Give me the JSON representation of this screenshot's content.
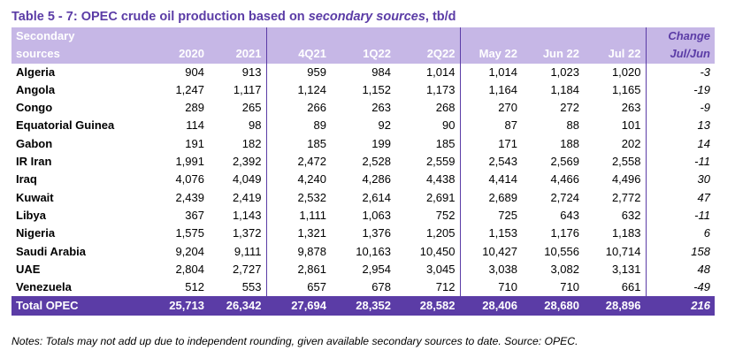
{
  "title": {
    "prefix": "Table 5 - 7: OPEC crude oil production based on ",
    "italic": "secondary sources",
    "suffix": ", tb/d"
  },
  "header": {
    "label_top": "Secondary",
    "label_bottom": "sources",
    "change_top": "Change",
    "change_bottom": "Jul/Jun",
    "columns": [
      "2020",
      "2021",
      "4Q21",
      "1Q22",
      "2Q22",
      "May 22",
      "Jun 22",
      "Jul 22"
    ]
  },
  "rows": [
    {
      "name": "Algeria",
      "values": [
        "904",
        "913",
        "959",
        "984",
        "1,014",
        "1,014",
        "1,023",
        "1,020"
      ],
      "change": "-3"
    },
    {
      "name": "Angola",
      "values": [
        "1,247",
        "1,117",
        "1,124",
        "1,152",
        "1,173",
        "1,164",
        "1,184",
        "1,165"
      ],
      "change": "-19"
    },
    {
      "name": "Congo",
      "values": [
        "289",
        "265",
        "266",
        "263",
        "268",
        "270",
        "272",
        "263"
      ],
      "change": "-9"
    },
    {
      "name": "Equatorial Guinea",
      "values": [
        "114",
        "98",
        "89",
        "92",
        "90",
        "87",
        "88",
        "101"
      ],
      "change": "13"
    },
    {
      "name": "Gabon",
      "values": [
        "191",
        "182",
        "185",
        "199",
        "185",
        "171",
        "188",
        "202"
      ],
      "change": "14"
    },
    {
      "name": "IR Iran",
      "values": [
        "1,991",
        "2,392",
        "2,472",
        "2,528",
        "2,559",
        "2,543",
        "2,569",
        "2,558"
      ],
      "change": "-11"
    },
    {
      "name": "Iraq",
      "values": [
        "4,076",
        "4,049",
        "4,240",
        "4,286",
        "4,438",
        "4,414",
        "4,466",
        "4,496"
      ],
      "change": "30"
    },
    {
      "name": "Kuwait",
      "values": [
        "2,439",
        "2,419",
        "2,532",
        "2,614",
        "2,691",
        "2,689",
        "2,724",
        "2,772"
      ],
      "change": "47"
    },
    {
      "name": "Libya",
      "values": [
        "367",
        "1,143",
        "1,111",
        "1,063",
        "752",
        "725",
        "643",
        "632"
      ],
      "change": "-11"
    },
    {
      "name": "Nigeria",
      "values": [
        "1,575",
        "1,372",
        "1,321",
        "1,376",
        "1,205",
        "1,153",
        "1,176",
        "1,183"
      ],
      "change": "6"
    },
    {
      "name": "Saudi Arabia",
      "values": [
        "9,204",
        "9,111",
        "9,878",
        "10,163",
        "10,450",
        "10,427",
        "10,556",
        "10,714"
      ],
      "change": "158"
    },
    {
      "name": "UAE",
      "values": [
        "2,804",
        "2,727",
        "2,861",
        "2,954",
        "3,045",
        "3,038",
        "3,082",
        "3,131"
      ],
      "change": "48"
    },
    {
      "name": "Venezuela",
      "values": [
        "512",
        "553",
        "657",
        "678",
        "712",
        "710",
        "710",
        "661"
      ],
      "change": "-49"
    }
  ],
  "total": {
    "name": "Total  OPEC",
    "values": [
      "25,713",
      "26,342",
      "27,694",
      "28,352",
      "28,582",
      "28,406",
      "28,680",
      "28,896"
    ],
    "change": "216"
  },
  "note": "Notes: Totals may not add up due to independent rounding, given available secondary sources to date. Source: OPEC.",
  "colors": {
    "accent": "#5b3ca6",
    "header_fill": "#c6b7e6"
  }
}
